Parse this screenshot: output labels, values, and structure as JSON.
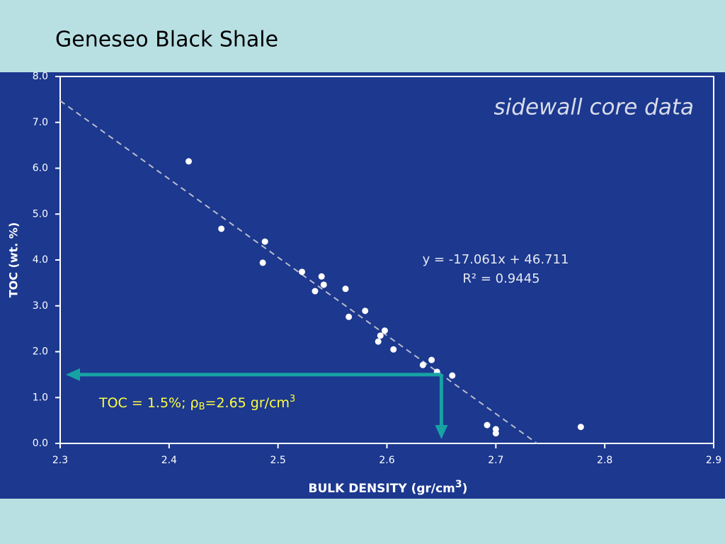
{
  "chart_data": {
    "type": "scatter",
    "title": "Geneseo Black Shale",
    "subtitle": "sidewall core data",
    "x_label": [
      "BULK DENSITY (gr/cm",
      "3",
      ")"
    ],
    "y_label": "TOC (wt. %)",
    "x": [
      2.418,
      2.448,
      2.488,
      2.486,
      2.522,
      2.54,
      2.542,
      2.534,
      2.562,
      2.565,
      2.58,
      2.598,
      2.594,
      2.592,
      2.606,
      2.641,
      2.633,
      2.646,
      2.66,
      2.692,
      2.7,
      2.7,
      2.778
    ],
    "series": [
      {
        "name": "sidewall core data",
        "color": "#ffffff",
        "values": [
          6.15,
          4.68,
          4.4,
          3.94,
          3.74,
          3.64,
          3.46,
          3.32,
          3.37,
          2.76,
          2.89,
          2.46,
          2.35,
          2.22,
          2.05,
          1.82,
          1.71,
          1.56,
          1.48,
          0.4,
          0.31,
          0.22,
          0.36
        ]
      }
    ],
    "xlim": [
      2.3,
      2.9
    ],
    "ylim": [
      0,
      8
    ],
    "xticks": [
      2.3,
      2.4,
      2.5,
      2.6,
      2.7,
      2.8,
      2.9
    ],
    "yticks": [
      {
        "value": 0,
        "label": "0.0"
      },
      {
        "value": 1,
        "label": "1.0"
      },
      {
        "value": 2,
        "label": "2.0"
      },
      {
        "value": 3,
        "label": "3.0"
      },
      {
        "value": 4,
        "label": "4.0"
      },
      {
        "value": 5,
        "label": "5.0"
      },
      {
        "value": 6,
        "label": "6.0"
      },
      {
        "value": 7,
        "label": "7.0"
      },
      {
        "value": 8,
        "label": "8.0"
      }
    ],
    "grid": false,
    "trendline": {
      "slope": -17.061,
      "intercept": 46.711,
      "color": "#b8bccb",
      "equation": "y = -17.061x + 46.711",
      "r2_label": "R² = 0.9445"
    },
    "annotation": {
      "text": [
        "TOC = 1.5%; ρ",
        "B",
        "=2.65 gr/cm",
        "3"
      ],
      "x": 2.65,
      "y": 1.5,
      "color": "#17a2a4"
    }
  }
}
